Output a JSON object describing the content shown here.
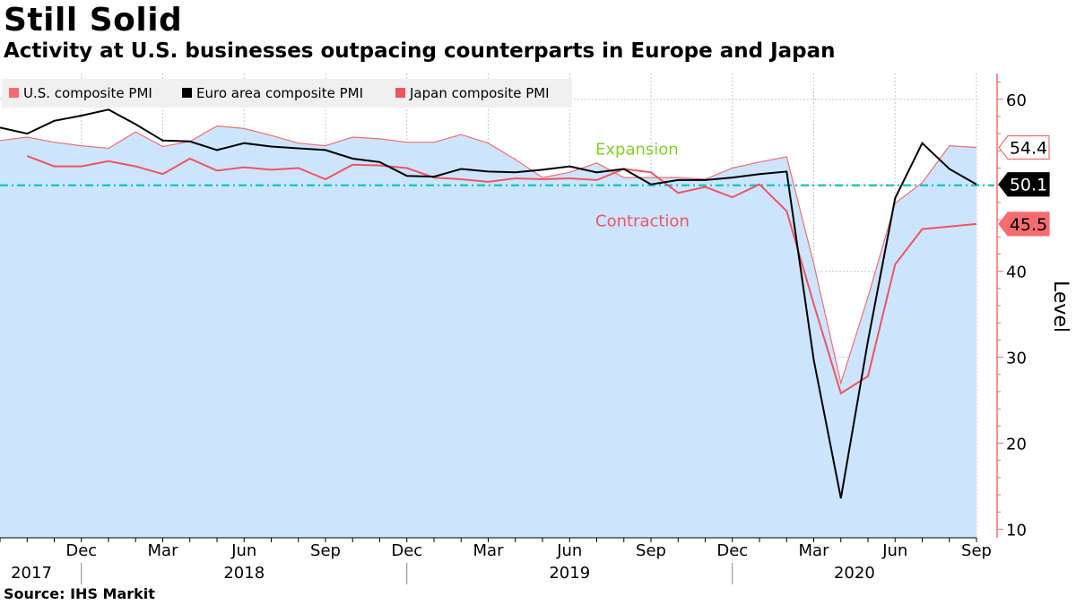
{
  "header": {
    "title": "Still Solid",
    "subtitle": "Activity at U.S. businesses outpacing counterparts in Europe and Japan"
  },
  "footer": {
    "source": "Source: IHS Markit"
  },
  "colors": {
    "us": "#f56c70",
    "us_area": "#cce5fd",
    "euro": "#000000",
    "japan": "#f0545e",
    "reference": "#1ec8c8",
    "expansion": "#7ed321",
    "contraction": "#f0545e",
    "axis": "#f56c70"
  },
  "chart_data": {
    "type": "line",
    "title": "Still Solid",
    "subtitle": "Activity at U.S. businesses outpacing counterparts in Europe and Japan",
    "ylabel": "Level",
    "ylim": [
      9,
      63
    ],
    "yticks": [
      10,
      20,
      30,
      40,
      50,
      60
    ],
    "x_start": "2017-09",
    "x_end": "2020-09",
    "month_tick_labels": [
      {
        "index": 3,
        "label": "Dec"
      },
      {
        "index": 6,
        "label": "Mar"
      },
      {
        "index": 9,
        "label": "Jun"
      },
      {
        "index": 12,
        "label": "Sep"
      },
      {
        "index": 15,
        "label": "Dec"
      },
      {
        "index": 18,
        "label": "Mar"
      },
      {
        "index": 21,
        "label": "Jun"
      },
      {
        "index": 24,
        "label": "Sep"
      },
      {
        "index": 27,
        "label": "Dec"
      },
      {
        "index": 30,
        "label": "Mar"
      },
      {
        "index": 33,
        "label": "Jun"
      },
      {
        "index": 36,
        "label": "Sep"
      }
    ],
    "year_labels": [
      {
        "label": "2017",
        "from": 0,
        "to": 3
      },
      {
        "label": "2018",
        "from": 3,
        "to": 15
      },
      {
        "label": "2019",
        "from": 15,
        "to": 27
      },
      {
        "label": "2020",
        "from": 27,
        "to": 37
      }
    ],
    "reference_line": 50,
    "annotations": {
      "expansion": "Expansion",
      "contraction": "Contraction"
    },
    "legend": [
      "U.S. composite PMI",
      "Euro area composite PMI",
      "Japan composite PMI"
    ],
    "series": [
      {
        "key": "us",
        "name": "U.S. composite PMI",
        "style": "area",
        "last_value": "54.4",
        "values": [
          55.2,
          55.6,
          55.0,
          54.6,
          54.3,
          56.2,
          54.5,
          55.1,
          56.9,
          56.6,
          55.8,
          54.9,
          54.6,
          55.6,
          55.4,
          55.0,
          55.0,
          55.9,
          54.9,
          53.0,
          50.9,
          51.5,
          52.6,
          50.9,
          50.9,
          50.9,
          50.7,
          52.0,
          52.7,
          53.3,
          40.9,
          27.0,
          37.0,
          47.9,
          50.3,
          54.6,
          54.4
        ]
      },
      {
        "key": "euro",
        "name": "Euro area composite PMI",
        "style": "line",
        "last_value": "50.1",
        "values": [
          56.7,
          56.0,
          57.5,
          58.1,
          58.8,
          57.1,
          55.2,
          55.1,
          54.1,
          54.9,
          54.5,
          54.3,
          54.1,
          53.1,
          52.7,
          51.1,
          51.0,
          51.9,
          51.6,
          51.5,
          51.8,
          52.2,
          51.5,
          51.9,
          50.1,
          50.6,
          50.6,
          50.9,
          51.3,
          51.6,
          29.7,
          13.6,
          31.9,
          48.5,
          54.9,
          51.9,
          50.1
        ]
      },
      {
        "key": "japan",
        "name": "Japan composite PMI",
        "style": "line",
        "last_value": "45.5",
        "values": [
          null,
          53.4,
          52.2,
          52.2,
          52.8,
          52.2,
          51.3,
          53.1,
          51.7,
          52.1,
          51.8,
          52.0,
          50.7,
          52.4,
          52.3,
          52.0,
          50.9,
          50.7,
          50.4,
          50.8,
          50.7,
          50.8,
          50.6,
          51.9,
          51.5,
          49.1,
          49.8,
          48.6,
          50.1,
          47.0,
          36.2,
          25.8,
          27.8,
          40.8,
          44.9,
          45.2,
          45.5
        ]
      }
    ]
  }
}
